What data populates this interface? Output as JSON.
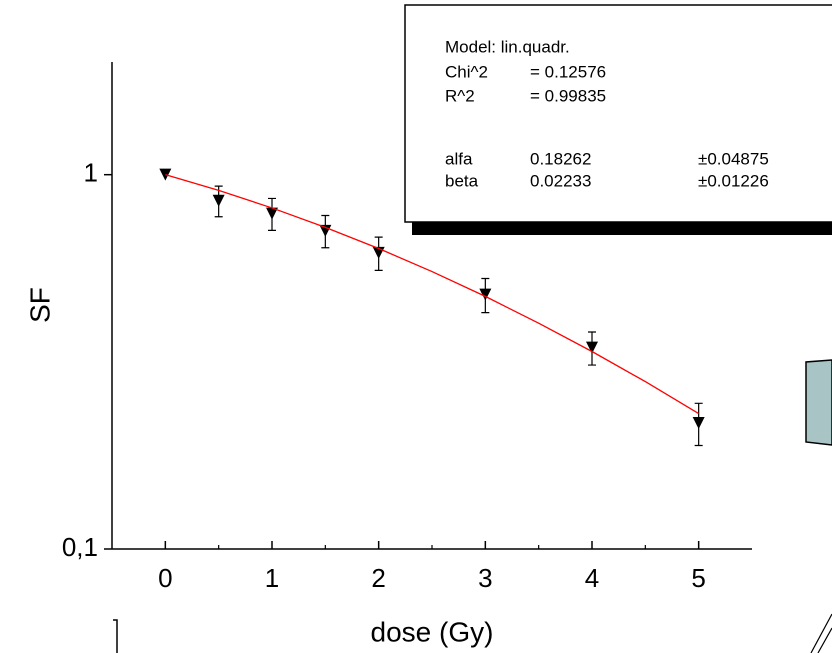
{
  "chart_data": {
    "type": "scatter",
    "xlabel": "dose (Gy)",
    "ylabel": "SF",
    "xlim": [
      -0.5,
      5.5
    ],
    "xticks": [
      0,
      1,
      2,
      3,
      4,
      5
    ],
    "xminorticks": [
      0.5,
      1.5,
      2.5,
      3.5,
      4.5
    ],
    "ylim": [
      0.1,
      2
    ],
    "yticks": [
      {
        "value": 0.1,
        "label": "0,1"
      },
      1
    ],
    "ylog": true,
    "series": [
      {
        "type": "scatter",
        "color": "#000000",
        "x": [
          0,
          0.5,
          1,
          1.5,
          2,
          3,
          4,
          5
        ],
        "values": [
          1.0,
          0.852,
          0.787,
          0.708,
          0.618,
          0.478,
          0.345,
          0.217
        ],
        "errors": [
          0,
          0.08,
          0.077,
          0.07,
          0.063,
          0.05,
          0.035,
          0.028
        ]
      },
      {
        "type": "line",
        "color": "#ff0000",
        "x": [
          0,
          0.5,
          1,
          1.5,
          2,
          2.5,
          3,
          3.5,
          4,
          4.5,
          5
        ],
        "values": [
          1.0,
          0.908,
          0.815,
          0.723,
          0.635,
          0.551,
          0.473,
          0.401,
          0.337,
          0.28,
          0.23
        ]
      }
    ],
    "fit_box": {
      "model": "Model: lin.quadr.",
      "stats": [
        [
          "Chi^2",
          "= 0.12576"
        ],
        [
          "R^2",
          "= 0.99835"
        ]
      ],
      "params": [
        [
          "alfa",
          "0.18262",
          "±0.04875"
        ],
        [
          "beta",
          "0.02233",
          "±0.01226"
        ]
      ]
    }
  }
}
